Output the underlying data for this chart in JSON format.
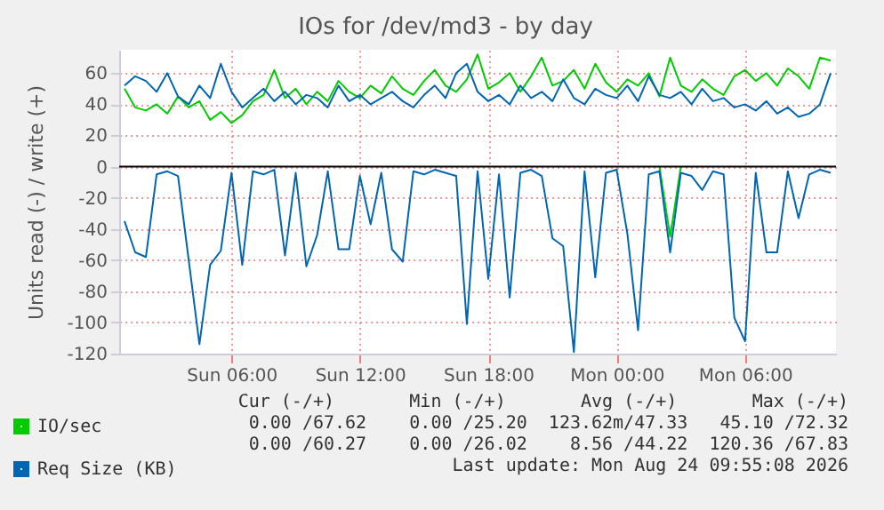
{
  "chart_data": {
    "type": "line",
    "title": "IOs for /dev/md3 - by day",
    "ylabel": "Units read (-) / write (+)",
    "x": [
      "2026-08-23T01:00",
      "2026-08-23T01:30",
      "2026-08-23T02:00",
      "2026-08-23T02:30",
      "2026-08-23T03:00",
      "2026-08-23T03:30",
      "2026-08-23T04:00",
      "2026-08-23T04:30",
      "2026-08-23T05:00",
      "2026-08-23T05:30",
      "2026-08-23T06:00",
      "2026-08-23T06:30",
      "2026-08-23T07:00",
      "2026-08-23T07:30",
      "2026-08-23T08:00",
      "2026-08-23T08:30",
      "2026-08-23T09:00",
      "2026-08-23T09:30",
      "2026-08-23T10:00",
      "2026-08-23T10:30",
      "2026-08-23T11:00",
      "2026-08-23T11:30",
      "2026-08-23T12:00",
      "2026-08-23T12:30",
      "2026-08-23T13:00",
      "2026-08-23T13:30",
      "2026-08-23T14:00",
      "2026-08-23T14:30",
      "2026-08-23T15:00",
      "2026-08-23T15:30",
      "2026-08-23T16:00",
      "2026-08-23T16:30",
      "2026-08-23T17:00",
      "2026-08-23T17:30",
      "2026-08-23T18:00",
      "2026-08-23T18:30",
      "2026-08-23T19:00",
      "2026-08-23T19:30",
      "2026-08-23T20:00",
      "2026-08-23T20:30",
      "2026-08-23T21:00",
      "2026-08-23T21:30",
      "2026-08-23T22:00",
      "2026-08-23T22:30",
      "2026-08-23T23:00",
      "2026-08-23T23:30",
      "2026-08-24T00:00",
      "2026-08-24T00:30",
      "2026-08-24T01:00",
      "2026-08-24T01:30",
      "2026-08-24T02:00",
      "2026-08-24T02:30",
      "2026-08-24T03:00",
      "2026-08-24T03:30",
      "2026-08-24T04:00",
      "2026-08-24T04:30",
      "2026-08-24T05:00",
      "2026-08-24T05:30",
      "2026-08-24T06:00",
      "2026-08-24T06:30",
      "2026-08-24T07:00",
      "2026-08-24T07:30",
      "2026-08-24T08:00",
      "2026-08-24T08:30",
      "2026-08-24T09:00",
      "2026-08-24T09:30",
      "2026-08-24T10:00"
    ],
    "series": [
      {
        "name": "IO/sec",
        "color": "#00cc00",
        "values": [
          50,
          38,
          36,
          40,
          34,
          45,
          38,
          42,
          30,
          35,
          28,
          33,
          42,
          46,
          62,
          44,
          50,
          40,
          48,
          42,
          55,
          48,
          44,
          52,
          47,
          58,
          50,
          46,
          55,
          62,
          52,
          48,
          56,
          72,
          50,
          54,
          60,
          48,
          58,
          70,
          52,
          55,
          62,
          50,
          66,
          54,
          48,
          56,
          52,
          60,
          45,
          70,
          52,
          48,
          56,
          50,
          46,
          58,
          62,
          55,
          60,
          52,
          63,
          58,
          50,
          70,
          68
        ]
      },
      {
        "color": "#00cc00",
        "values": [
          null,
          null,
          null,
          null,
          null,
          null,
          null,
          null,
          null,
          null,
          null,
          null,
          null,
          null,
          null,
          null,
          null,
          null,
          null,
          null,
          null,
          null,
          null,
          null,
          null,
          null,
          null,
          null,
          null,
          null,
          null,
          null,
          null,
          null,
          null,
          null,
          null,
          null,
          null,
          null,
          null,
          null,
          null,
          null,
          null,
          null,
          null,
          null,
          null,
          null,
          0,
          -45,
          0,
          null,
          null,
          null,
          null,
          null,
          null,
          null,
          null,
          null,
          null,
          null,
          null,
          null,
          null
        ]
      },
      {
        "name": "Req Size (KB)",
        "color": "#0066b3",
        "values": [
          52,
          58,
          55,
          48,
          60,
          45,
          40,
          52,
          44,
          66,
          48,
          38,
          44,
          50,
          42,
          48,
          40,
          46,
          44,
          38,
          52,
          42,
          46,
          40,
          44,
          48,
          42,
          38,
          46,
          52,
          44,
          60,
          66,
          48,
          42,
          46,
          40,
          52,
          44,
          48,
          42,
          56,
          44,
          40,
          50,
          46,
          44,
          52,
          42,
          58,
          46,
          44,
          48,
          40,
          50,
          42,
          44,
          38,
          40,
          36,
          42,
          34,
          38,
          32,
          34,
          40,
          60
        ]
      },
      {
        "color": "#0066b3",
        "values": [
          -35,
          -55,
          -58,
          -5,
          -3,
          -6,
          -60,
          -114,
          -63,
          -54,
          -4,
          -63,
          -3,
          -5,
          -2,
          -57,
          -4,
          -64,
          -44,
          -3,
          -53,
          -53,
          -6,
          -37,
          -4,
          -53,
          -61,
          -3,
          -5,
          -2,
          -4,
          -6,
          -101,
          -3,
          -72,
          -5,
          -84,
          -4,
          -2,
          -6,
          -46,
          -51,
          -119,
          -3,
          -71,
          -4,
          -2,
          -43,
          -105,
          -5,
          -3,
          -55,
          -4,
          -6,
          -15,
          -3,
          -5,
          -97,
          -112,
          -4,
          -55,
          -55,
          -3,
          -33,
          -5,
          -2,
          -4
        ]
      }
    ],
    "xlim": [
      "2026-08-23T00:45",
      "2026-08-24T10:15"
    ],
    "xticks": [
      {
        "value": "2026-08-23T06:00",
        "label": "Sun 06:00"
      },
      {
        "value": "2026-08-23T12:00",
        "label": "Sun 12:00"
      },
      {
        "value": "2026-08-23T18:00",
        "label": "Sun 18:00"
      },
      {
        "value": "2026-08-24T00:00",
        "label": "Mon 00:00"
      },
      {
        "value": "2026-08-24T06:00",
        "label": "Mon 06:00"
      }
    ],
    "ylim": [
      -120,
      75
    ],
    "yticks": [
      -120,
      -100,
      -80,
      -60,
      -40,
      -20,
      0,
      20,
      40,
      60
    ],
    "ref_lines": [
      {
        "axis": "y",
        "value": 0,
        "color": "#000000"
      }
    ],
    "grid": true,
    "legend": "bottom left",
    "annotations": [
      "Cur (-/+)       Min (-/+)       Avg (-/+)       Max (-/+)",
      "0.00 /67.62    0.00 /25.20  123.62m/47.33   45.10 /72.32",
      "0.00 /60.27    0.00 /26.02    8.56 /44.22  120.36 /67.83",
      "Last update: Mon Aug 24 09:55:08 2026"
    ]
  }
}
